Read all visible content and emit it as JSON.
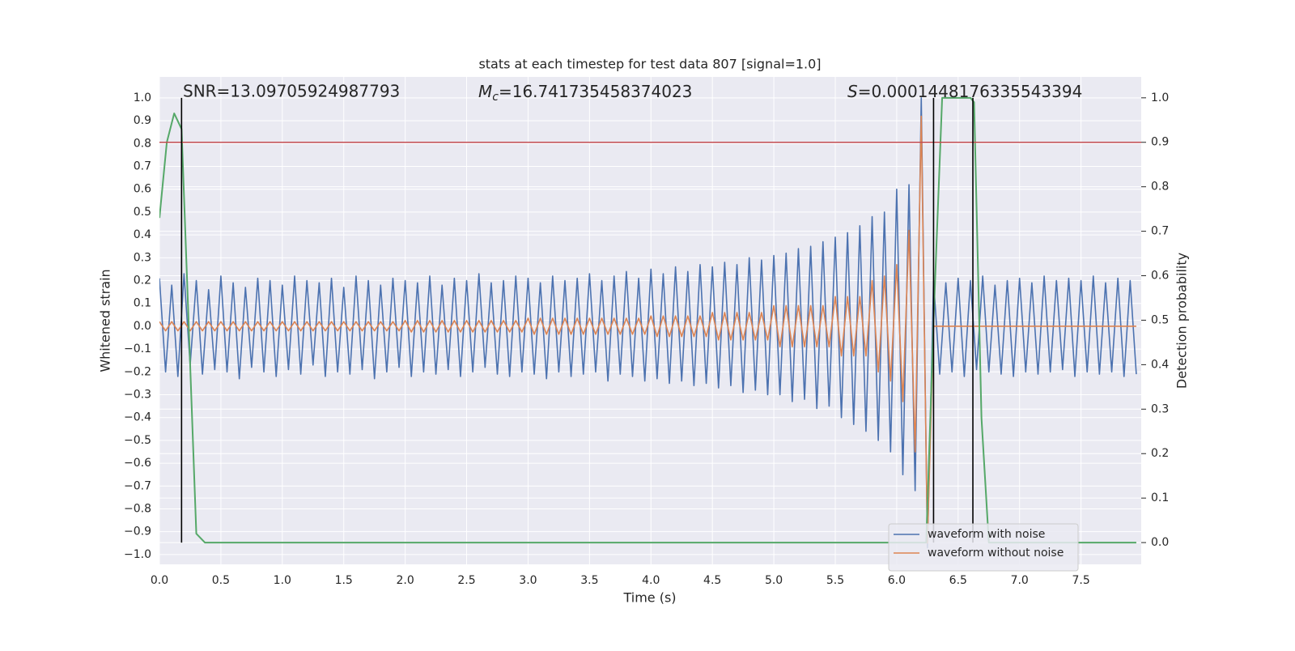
{
  "chart_data": {
    "type": "line",
    "title": "stats at each timestep for test data 807 [signal=1.0]",
    "xlabel": "Time (s)",
    "ylabel": "Whitened strain",
    "y2label": "Detection probability",
    "annotations": [
      {
        "text": "SNR=13.09705924987793"
      },
      {
        "symbol": "M",
        "subscript": "c",
        "text": "=16.741735458374023"
      },
      {
        "symbol": "S",
        "text": "=0.0001448176335543394"
      }
    ],
    "xlim": [
      0,
      7.99
    ],
    "ylim": [
      -1.043,
      1.092
    ],
    "y2lim": [
      -0.049,
      1.047
    ],
    "xticks": [
      {
        "value": 0,
        "label": "0.0"
      },
      {
        "value": 0.5,
        "label": "0.5"
      },
      {
        "value": 1,
        "label": "1.0"
      },
      {
        "value": 1.5,
        "label": "1.5"
      },
      {
        "value": 2,
        "label": "2.0"
      },
      {
        "value": 2.5,
        "label": "2.5"
      },
      {
        "value": 3,
        "label": "3.0"
      },
      {
        "value": 3.5,
        "label": "3.5"
      },
      {
        "value": 4,
        "label": "4.0"
      },
      {
        "value": 4.5,
        "label": "4.5"
      },
      {
        "value": 5,
        "label": "5.0"
      },
      {
        "value": 5.5,
        "label": "5.5"
      },
      {
        "value": 6,
        "label": "6.0"
      },
      {
        "value": 6.5,
        "label": "6.5"
      },
      {
        "value": 7,
        "label": "7.0"
      },
      {
        "value": 7.5,
        "label": "7.5"
      }
    ],
    "yticks": [
      {
        "value": -1,
        "label": "−1.0"
      },
      {
        "value": -0.9,
        "label": "−0.9"
      },
      {
        "value": -0.8,
        "label": "−0.8"
      },
      {
        "value": -0.7,
        "label": "−0.7"
      },
      {
        "value": -0.6,
        "label": "−0.6"
      },
      {
        "value": -0.5,
        "label": "−0.5"
      },
      {
        "value": -0.4,
        "label": "−0.4"
      },
      {
        "value": -0.3,
        "label": "−0.3"
      },
      {
        "value": -0.2,
        "label": "−0.2"
      },
      {
        "value": -0.1,
        "label": "−0.1"
      },
      {
        "value": 0,
        "label": "0.0"
      },
      {
        "value": 0.1,
        "label": "0.1"
      },
      {
        "value": 0.2,
        "label": "0.2"
      },
      {
        "value": 0.3,
        "label": "0.3"
      },
      {
        "value": 0.4,
        "label": "0.4"
      },
      {
        "value": 0.5,
        "label": "0.5"
      },
      {
        "value": 0.6,
        "label": "0.6"
      },
      {
        "value": 0.7,
        "label": "0.7"
      },
      {
        "value": 0.8,
        "label": "0.8"
      },
      {
        "value": 0.9,
        "label": "0.9"
      },
      {
        "value": 1,
        "label": "1.0"
      }
    ],
    "y2ticks": [
      {
        "value": 0,
        "label": "0.0"
      },
      {
        "value": 0.1,
        "label": "0.1"
      },
      {
        "value": 0.2,
        "label": "0.2"
      },
      {
        "value": 0.3,
        "label": "0.3"
      },
      {
        "value": 0.4,
        "label": "0.4"
      },
      {
        "value": 0.5,
        "label": "0.5"
      },
      {
        "value": 0.6,
        "label": "0.6"
      },
      {
        "value": 0.7,
        "label": "0.7"
      },
      {
        "value": 0.8,
        "label": "0.8"
      },
      {
        "value": 0.9,
        "label": "0.9"
      },
      {
        "value": 1,
        "label": "1.0"
      }
    ],
    "grid": true,
    "legend": "lower right",
    "threshold": {
      "value": 0.9,
      "axis": "y2",
      "color": "#c44e52"
    },
    "vlines": {
      "x": [
        0.18,
        6.3,
        6.62
      ],
      "color": "#000000"
    },
    "x": [
      0,
      0.05,
      0.1,
      0.15,
      0.2,
      0.25,
      0.3,
      0.35,
      0.4,
      0.45,
      0.5,
      0.55,
      0.6,
      0.65,
      0.7,
      0.75,
      0.8,
      0.85,
      0.9,
      0.95,
      1,
      1.05,
      1.1,
      1.15,
      1.2,
      1.25,
      1.3,
      1.35,
      1.4,
      1.45,
      1.5,
      1.55,
      1.6,
      1.65,
      1.7,
      1.75,
      1.8,
      1.85,
      1.9,
      1.95,
      2,
      2.05,
      2.1,
      2.15,
      2.2,
      2.25,
      2.3,
      2.35,
      2.4,
      2.45,
      2.5,
      2.55,
      2.6,
      2.65,
      2.7,
      2.75,
      2.8,
      2.85,
      2.9,
      2.95,
      3,
      3.05,
      3.1,
      3.15,
      3.2,
      3.25,
      3.3,
      3.35,
      3.4,
      3.45,
      3.5,
      3.55,
      3.6,
      3.65,
      3.7,
      3.75,
      3.8,
      3.85,
      3.9,
      3.95,
      4,
      4.05,
      4.1,
      4.15,
      4.2,
      4.25,
      4.3,
      4.35,
      4.4,
      4.45,
      4.5,
      4.55,
      4.6,
      4.65,
      4.7,
      4.75,
      4.8,
      4.85,
      4.9,
      4.95,
      5,
      5.05,
      5.1,
      5.15,
      5.2,
      5.25,
      5.3,
      5.35,
      5.4,
      5.45,
      5.5,
      5.55,
      5.6,
      5.65,
      5.7,
      5.75,
      5.8,
      5.85,
      5.9,
      5.95,
      6,
      6.05,
      6.1,
      6.15,
      6.2,
      6.25,
      6.3,
      6.35,
      6.4,
      6.45,
      6.5,
      6.55,
      6.6,
      6.65,
      6.7,
      6.75,
      6.8,
      6.85,
      6.9,
      6.95,
      7,
      7.05,
      7.1,
      7.15,
      7.2,
      7.25,
      7.3,
      7.35,
      7.4,
      7.45,
      7.5,
      7.55,
      7.6,
      7.65,
      7.7,
      7.75,
      7.8,
      7.85,
      7.9,
      7.95
    ],
    "series": [
      {
        "name": "waveform with noise",
        "color": "#4c72b0",
        "values": [
          0.21,
          -0.2,
          0.18,
          -0.22,
          0.23,
          -0.17,
          0.2,
          -0.21,
          0.16,
          -0.19,
          0.22,
          -0.2,
          0.19,
          -0.23,
          0.17,
          -0.18,
          0.21,
          -0.2,
          0.2,
          -0.22,
          0.18,
          -0.19,
          0.22,
          -0.21,
          0.2,
          -0.17,
          0.19,
          -0.22,
          0.21,
          -0.2,
          0.17,
          -0.21,
          0.22,
          -0.19,
          0.2,
          -0.23,
          0.18,
          -0.2,
          0.21,
          -0.18,
          0.2,
          -0.22,
          0.19,
          -0.2,
          0.22,
          -0.21,
          0.18,
          -0.19,
          0.21,
          -0.22,
          0.2,
          -0.2,
          0.23,
          -0.18,
          0.19,
          -0.21,
          0.2,
          -0.22,
          0.22,
          -0.2,
          0.21,
          -0.21,
          0.19,
          -0.23,
          0.22,
          -0.2,
          0.2,
          -0.22,
          0.21,
          -0.21,
          0.23,
          -0.2,
          0.2,
          -0.24,
          0.22,
          -0.21,
          0.24,
          -0.22,
          0.21,
          -0.24,
          0.25,
          -0.23,
          0.23,
          -0.25,
          0.26,
          -0.24,
          0.24,
          -0.26,
          0.27,
          -0.25,
          0.26,
          -0.27,
          0.28,
          -0.26,
          0.27,
          -0.29,
          0.3,
          -0.28,
          0.29,
          -0.3,
          0.31,
          -0.3,
          0.32,
          -0.33,
          0.34,
          -0.32,
          0.35,
          -0.36,
          0.37,
          -0.35,
          0.39,
          -0.4,
          0.41,
          -0.43,
          0.44,
          -0.46,
          0.48,
          -0.5,
          0.5,
          -0.55,
          0.6,
          -0.65,
          0.62,
          -0.72,
          1.0,
          -0.97,
          0.2,
          -0.21,
          0.19,
          -0.2,
          0.21,
          -0.22,
          0.2,
          -0.19,
          0.22,
          -0.2,
          0.18,
          -0.21,
          0.2,
          -0.22,
          0.21,
          -0.2,
          0.19,
          -0.21,
          0.22,
          -0.2,
          0.2,
          -0.19,
          0.21,
          -0.22,
          0.2,
          -0.2,
          0.22,
          -0.21,
          0.19,
          -0.2,
          0.21,
          -0.22,
          0.2,
          -0.21
        ]
      },
      {
        "name": "waveform without noise",
        "color": "#dd8452",
        "values": [
          0.02,
          -0.02,
          0.02,
          -0.02,
          0.02,
          -0.02,
          0.02,
          -0.02,
          0.02,
          -0.02,
          0.02,
          -0.02,
          0.02,
          -0.02,
          0.02,
          -0.02,
          0.02,
          -0.02,
          0.02,
          -0.02,
          0.02,
          -0.02,
          0.02,
          -0.02,
          0.02,
          -0.02,
          0.02,
          -0.02,
          0.02,
          -0.02,
          0.02,
          -0.02,
          0.02,
          -0.02,
          0.02,
          -0.02,
          0.02,
          -0.02,
          0.02,
          -0.02,
          0.025,
          -0.025,
          0.025,
          -0.025,
          0.025,
          -0.025,
          0.025,
          -0.025,
          0.025,
          -0.025,
          0.025,
          -0.025,
          0.025,
          -0.025,
          0.025,
          -0.025,
          0.025,
          -0.025,
          0.025,
          -0.025,
          0.035,
          -0.035,
          0.035,
          -0.035,
          0.035,
          -0.035,
          0.035,
          -0.035,
          0.035,
          -0.035,
          0.035,
          -0.035,
          0.035,
          -0.035,
          0.035,
          -0.035,
          0.035,
          -0.035,
          0.035,
          -0.035,
          0.045,
          -0.045,
          0.045,
          -0.045,
          0.045,
          -0.045,
          0.045,
          -0.045,
          0.045,
          -0.045,
          0.06,
          -0.06,
          0.06,
          -0.06,
          0.06,
          -0.06,
          0.06,
          -0.06,
          0.06,
          -0.06,
          0.09,
          -0.09,
          0.09,
          -0.09,
          0.09,
          -0.09,
          0.09,
          -0.09,
          0.09,
          -0.09,
          0.13,
          -0.13,
          0.13,
          -0.13,
          0.13,
          -0.13,
          0.2,
          -0.2,
          0.22,
          -0.24,
          0.27,
          -0.33,
          0.42,
          -0.55,
          0.92,
          -0.95,
          0,
          0,
          0,
          0,
          0,
          0,
          0,
          0,
          0,
          0,
          0,
          0,
          0,
          0,
          0,
          0,
          0,
          0,
          0,
          0,
          0,
          0,
          0,
          0,
          0,
          0,
          0,
          0,
          0,
          0,
          0,
          0,
          0,
          0
        ]
      },
      {
        "color": "#55a868",
        "axis": "y2",
        "x": [
          0,
          0.06,
          0.12,
          0.18,
          0.3,
          0.37,
          6.24,
          6.3,
          6.37,
          6.6,
          6.63,
          6.69,
          6.75,
          7.95
        ],
        "values": [
          0.73,
          0.9,
          0.965,
          0.93,
          0.02,
          0,
          0,
          0.5,
          1,
          1,
          0.99,
          0.28,
          0,
          0
        ]
      }
    ]
  }
}
